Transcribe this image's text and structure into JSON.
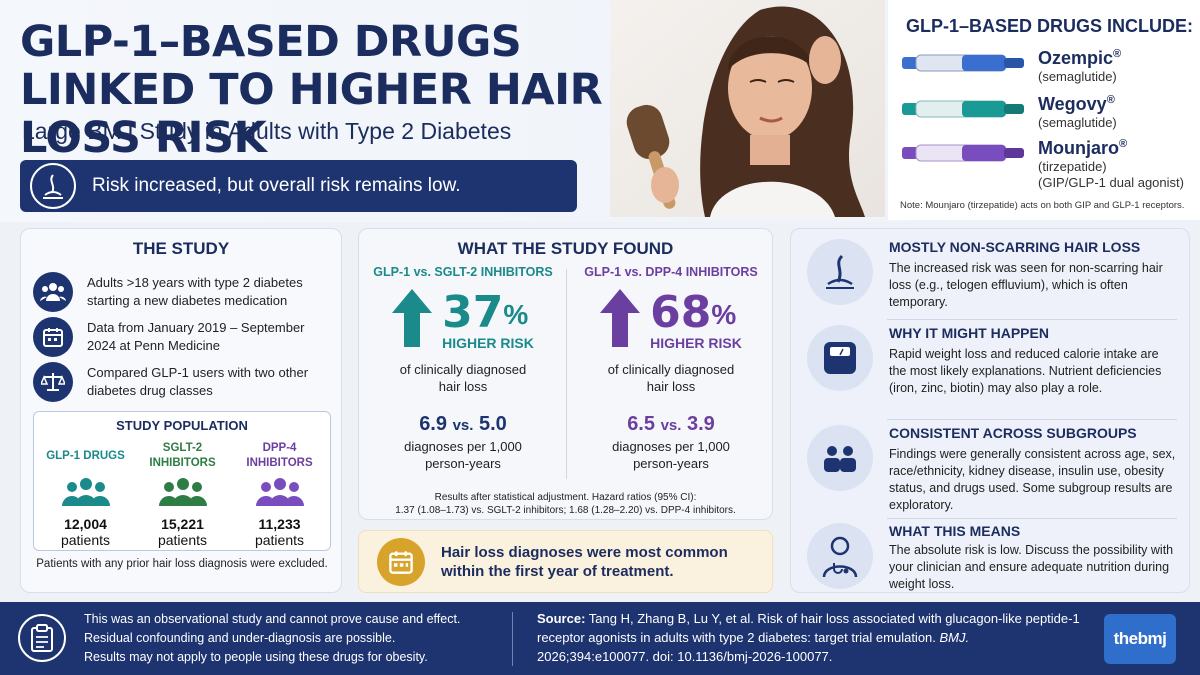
{
  "colors": {
    "navy": "#1d3470",
    "glp1": "#1a8a8a",
    "sglt2": "#2e7d45",
    "dpp4": "#6b3fa0",
    "accent_gold": "#d8a32a"
  },
  "header": {
    "title": "GLP-1–BASED DRUGS LINKED TO HIGHER HAIR LOSS RISK",
    "subtitle": "Large BMJ Study in Adults with Type 2 Diabetes",
    "banner_text": "Risk increased, but overall risk remains low.",
    "banner_icon": "hair-follicle-icon"
  },
  "drug_panel": {
    "title": "GLP-1–BASED DRUGS INCLUDE:",
    "drugs": [
      {
        "name": "Ozempic",
        "mark": "®",
        "generic": "(semaglutide)",
        "color": "#3a6fd0"
      },
      {
        "name": "Wegovy",
        "mark": "®",
        "generic": "(semaglutide)",
        "color": "#1a9a95"
      },
      {
        "name": "Mounjaro",
        "mark": "®",
        "generic": "(tirzepatide)",
        "generic2": "(GIP/GLP-1 dual agonist)",
        "color": "#7a4dbf"
      }
    ],
    "note": "Note: Mounjaro (tirzepatide) acts on both GIP and GLP-1 receptors."
  },
  "study": {
    "title": "THE STUDY",
    "items": [
      {
        "icon": "people-icon",
        "text": "Adults >18 years with type 2 diabetes starting a new diabetes medication"
      },
      {
        "icon": "calendar-icon",
        "text": "Data from January 2019 – September 2024 at Penn Medicine"
      },
      {
        "icon": "scale-icon",
        "text": "Compared GLP-1 users with two other diabetes drug classes"
      }
    ],
    "population": {
      "title": "STUDY POPULATION",
      "groups": [
        {
          "label": "GLP-1 DRUGS",
          "count": "12,004",
          "unit": "patients"
        },
        {
          "label": "SGLT-2 INHIBITORS",
          "count": "15,221",
          "unit": "patients"
        },
        {
          "label": "DPP-4 INHIBITORS",
          "count": "11,233",
          "unit": "patients"
        }
      ]
    },
    "note": "Patients with any prior hair loss diagnosis were excluded."
  },
  "findings": {
    "title": "WHAT THE STUDY FOUND",
    "comparisons": [
      {
        "header": "GLP-1 vs. SGLT-2 INHIBITORS",
        "percent": "37",
        "pct_sign": "%",
        "higher": "HIGHER RISK",
        "desc": "of clinically diagnosed hair loss",
        "rate_a": "6.9",
        "vs": "vs.",
        "rate_b": "5.0",
        "rate_unit": "diagnoses per 1,000 person-years"
      },
      {
        "header": "GLP-1 vs. DPP-4 INHIBITORS",
        "percent": "68",
        "pct_sign": "%",
        "higher": "HIGHER RISK",
        "desc": "of clinically diagnosed hair loss",
        "rate_a": "6.5",
        "vs": "vs.",
        "rate_b": "3.9",
        "rate_unit": "diagnoses per 1,000 person-years"
      }
    ],
    "footnote_1": "Results after statistical adjustment. Hazard ratios (95% CI):",
    "footnote_2": "1.37 (1.08–1.73) vs. SGLT-2 inhibitors; 1.68 (1.28–2.20) vs. DPP-4 inhibitors."
  },
  "callout": {
    "icon": "calendar-icon",
    "text": "Hair loss diagnoses were most common within the first year of treatment."
  },
  "right": [
    {
      "icon": "hair-follicle-icon",
      "heading": "MOSTLY NON-SCARRING HAIR LOSS",
      "text": "The increased risk was seen for non-scarring hair loss (e.g., telogen effluvium), which is often temporary."
    },
    {
      "icon": "weight-scale-icon",
      "heading": "WHY IT MIGHT HAPPEN",
      "text": "Rapid weight loss and reduced calorie intake are the most likely explanations. Nutrient deficiencies (iron, zinc, biotin) may also play a role."
    },
    {
      "icon": "people-icon",
      "heading": "CONSISTENT ACROSS SUBGROUPS",
      "text": "Findings were generally consistent across age, sex, race/ethnicity, kidney disease, insulin use, obesity status, and drugs used. Some subgroup results are exploratory."
    },
    {
      "icon": "doctor-icon",
      "heading": "WHAT THIS MEANS",
      "text": "The absolute risk is low. Discuss the possibility with your clinician and ensure adequate nutrition during weight loss."
    }
  ],
  "footer": {
    "icon": "clipboard-icon",
    "limitations": [
      "This was an observational study and cannot prove cause and effect.",
      "Residual confounding and under-diagnosis are possible.",
      "Results may not apply to people using these drugs for obesity."
    ],
    "source_label": "Source:",
    "source_text": "Tang H, Zhang B, Lu Y, et al. Risk of hair loss associated with glucagon-like peptide-1 receptor agonists in adults with type 2 diabetes: target trial emulation.",
    "journal": "BMJ.",
    "citation": "2026;394:e100077. doi: 10.1136/bmj-2026-100077.",
    "logo": "thebmj"
  }
}
